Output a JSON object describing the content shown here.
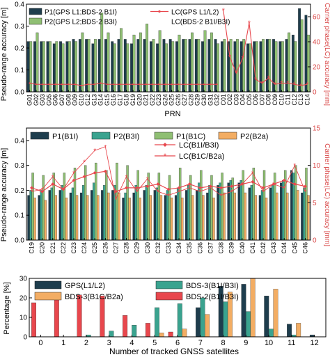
{
  "chart_data": [
    {
      "type": "bar",
      "xlabel": "PRN",
      "ylabel": "Pseudo-range accuracy [m]",
      "y2label": "Carrier phase(LC) accuracy [mm]",
      "ylim": [
        0,
        0.4
      ],
      "yticks": [
        0.0,
        0.1,
        0.2,
        0.3,
        0.4
      ],
      "y2lim": [
        0,
        70
      ],
      "y2ticks": [
        0,
        20,
        40,
        60
      ],
      "legend_location": "top-left",
      "categories": [
        "G01",
        "G02",
        "G03",
        "G05",
        "G06",
        "G07",
        "G08",
        "G09",
        "G10",
        "G12",
        "G13",
        "G14",
        "G15",
        "G16",
        "G17",
        "G18",
        "G19",
        "G20",
        "G21",
        "G22",
        "G23",
        "G24",
        "G25",
        "G26",
        "G27",
        "G28",
        "G29",
        "G30",
        "G31",
        "G32",
        "C01",
        "C02",
        "C03",
        "C04",
        "C05",
        "C06",
        "C07",
        "C08",
        "C09",
        "C10",
        "C11",
        "C12",
        "C13",
        "C14"
      ],
      "series": [
        {
          "name": "P1(GPS L1;BDS-2 B1I)",
          "kind": "bar",
          "color": "#1e3d4d",
          "values": [
            0.23,
            0.23,
            0.23,
            0.23,
            0.22,
            0.23,
            0.23,
            0.24,
            0.24,
            0.24,
            0.22,
            0.24,
            0.24,
            0.23,
            0.24,
            0.24,
            0.22,
            0.24,
            0.24,
            0.23,
            0.22,
            0.24,
            0.24,
            0.23,
            0.24,
            0.24,
            0.24,
            0.23,
            0.24,
            0.24,
            0.23,
            0.23,
            0.23,
            0.23,
            0.22,
            0.23,
            0.23,
            0.24,
            0.24,
            0.23,
            0.24,
            0.26,
            0.38,
            0.35
          ]
        },
        {
          "name": "P2(GPS L2;BDS-2 B3I)",
          "kind": "bar",
          "color": "#8fbf73",
          "values": [
            0.23,
            0.27,
            0.23,
            0.23,
            0.23,
            0.22,
            0.23,
            0.23,
            0.27,
            0.24,
            0.24,
            0.36,
            0.27,
            0.22,
            0.29,
            0.22,
            0.26,
            0.27,
            0.31,
            0.24,
            0.28,
            0.22,
            0.23,
            0.26,
            0.24,
            0.27,
            0.24,
            0.28,
            0.27,
            0.22,
            0.24,
            0.24,
            0.24,
            0.24,
            0.22,
            0.23,
            0.24,
            0.24,
            0.23,
            0.23,
            0.27,
            0.23,
            0.33,
            0.26
          ]
        },
        {
          "name": "LC(GPS L1/L2)",
          "kind": "line",
          "color": "#e8474d",
          "values": [
            7,
            6,
            6,
            6,
            6,
            6,
            6,
            6,
            5,
            6,
            6,
            7,
            6,
            6,
            6,
            6,
            6,
            6,
            6,
            6,
            6,
            6,
            6,
            6,
            6,
            6,
            6,
            6,
            6,
            6,
            null,
            null,
            null,
            null,
            null,
            null,
            null,
            null,
            null,
            null,
            null,
            null,
            null,
            null
          ]
        },
        {
          "name": "LC(BDS-2 B1I/B3I)",
          "kind": "line",
          "color": "#e8474d",
          "values": [
            null,
            null,
            null,
            null,
            null,
            null,
            null,
            null,
            null,
            null,
            null,
            null,
            null,
            null,
            null,
            null,
            null,
            null,
            null,
            null,
            null,
            null,
            null,
            null,
            null,
            null,
            null,
            null,
            null,
            null,
            65,
            28,
            15,
            27,
            55,
            10,
            7,
            11,
            6,
            7,
            7,
            6,
            5,
            6
          ]
        }
      ]
    },
    {
      "type": "bar",
      "ylabel": "Pseudo-range accuracy [m]",
      "y2label": "Carrier phase(LC) accuracy [mm]",
      "ylim": [
        0,
        0.45
      ],
      "yticks": [
        0.0,
        0.1,
        0.2,
        0.3,
        0.4
      ],
      "y2lim": [
        0,
        15
      ],
      "y2ticks": [
        0,
        5,
        10,
        15
      ],
      "legend_location": "top",
      "categories": [
        "C19",
        "C20",
        "C21",
        "C22",
        "C23",
        "C24",
        "C25",
        "C26",
        "C27",
        "C28",
        "C29",
        "C30",
        "C32",
        "C33",
        "C34",
        "C35",
        "C36",
        "C37",
        "C38",
        "C39",
        "C40",
        "C41",
        "C42",
        "C43",
        "C44",
        "C45",
        "C46"
      ],
      "series": [
        {
          "name": "P1(B1I)",
          "kind": "bar",
          "color": "#1e3d4d",
          "values": [
            0.18,
            0.18,
            0.2,
            0.2,
            0.19,
            0.19,
            0.2,
            0.2,
            0.2,
            0.17,
            0.19,
            0.2,
            0.2,
            0.18,
            0.18,
            0.2,
            0.2,
            0.19,
            0.22,
            0.23,
            0.23,
            0.21,
            0.18,
            0.21,
            0.23,
            0.28,
            0.19
          ]
        },
        {
          "name": "P2(B3I)",
          "kind": "bar",
          "color": "#3aa38f",
          "values": [
            0.2,
            0.2,
            0.21,
            0.22,
            0.21,
            0.22,
            0.23,
            0.22,
            0.22,
            0.19,
            0.22,
            0.22,
            0.21,
            0.2,
            0.21,
            0.22,
            0.23,
            0.22,
            0.23,
            0.24,
            0.24,
            0.22,
            0.2,
            0.22,
            0.24,
            0.27,
            0.21
          ]
        },
        {
          "name": "P1(B1C)",
          "kind": "bar",
          "color": "#8fbf73",
          "values": [
            0.27,
            0.26,
            0.27,
            0.27,
            0.29,
            0.3,
            0.31,
            0.28,
            0.31,
            0.3,
            0.28,
            0.27,
            0.27,
            0.26,
            0.29,
            0.26,
            0.28,
            0.26,
            0.27,
            0.25,
            0.28,
            0.29,
            0.28,
            0.27,
            0.28,
            0.3,
            0.29
          ]
        },
        {
          "name": "P2(B2a)",
          "kind": "bar",
          "color": "#f3ad63",
          "values": [
            0.17,
            0.16,
            0.18,
            0.17,
            0.18,
            0.18,
            0.18,
            0.19,
            0.19,
            0.17,
            0.17,
            0.18,
            0.18,
            0.17,
            0.17,
            0.18,
            0.18,
            0.17,
            0.19,
            0.19,
            0.19,
            0.18,
            0.17,
            0.19,
            0.19,
            0.2,
            0.18
          ]
        },
        {
          "name": "LC(B1I/B3I)",
          "kind": "line",
          "color": "#e8474d",
          "values": [
            7.0,
            6.5,
            7.5,
            6.8,
            8.0,
            8.5,
            9.0,
            9.2,
            6.5,
            7.0,
            7.0,
            7.2,
            7.5,
            6.8,
            7.0,
            7.5,
            7.0,
            7.2,
            7.0,
            7.2,
            7.5,
            7.8,
            7.0,
            7.5,
            8.0,
            7.5,
            7.2
          ]
        },
        {
          "name": "LC(B1C/B2a)",
          "kind": "line",
          "color": "#e8474d",
          "values": [
            6.5,
            6.8,
            8.5,
            6.8,
            9.0,
            10.5,
            12.0,
            12.5,
            5.5,
            8.5,
            6.5,
            8.2,
            6.5,
            6.0,
            6.5,
            7.0,
            6.5,
            7.0,
            6.0,
            6.5,
            7.5,
            9.0,
            6.5,
            7.5,
            7.0,
            10.0,
            6.5
          ]
        }
      ]
    },
    {
      "type": "bar",
      "xlabel": "Number of tracked GNSS satellites",
      "ylabel": "Percentage [%]",
      "ylim": [
        0,
        30
      ],
      "yticks": [
        0,
        10,
        20,
        30
      ],
      "legend_location": "top",
      "categories": [
        "0",
        "1",
        "2",
        "3",
        "4",
        "5",
        "6",
        "7",
        "8",
        "9",
        "10",
        "11",
        "12"
      ],
      "series": [
        {
          "name": "GPS(L1/L2)",
          "color": "#1e3d4d",
          "values": [
            0,
            0,
            0,
            0,
            0,
            0,
            0,
            15,
            26,
            27,
            21,
            6.5,
            1
          ]
        },
        {
          "name": "BDS-3(B1I/B3I)",
          "color": "#3aa38f",
          "values": [
            0,
            0,
            1,
            3,
            6,
            15,
            17,
            20,
            18,
            13,
            4,
            1,
            0
          ]
        },
        {
          "name": "BDS-3(B1C/B2a)",
          "color": "#f3ad63",
          "values": [
            0,
            0,
            0,
            0,
            0,
            2,
            4,
            11.5,
            23,
            30,
            24.5,
            7,
            0
          ]
        },
        {
          "name": "BDS-2(B1I/B3I)",
          "color": "#e8474d",
          "values": [
            17.5,
            20,
            21.5,
            21,
            11,
            7,
            2.5,
            0,
            0,
            0,
            0,
            0,
            0
          ]
        }
      ]
    }
  ]
}
